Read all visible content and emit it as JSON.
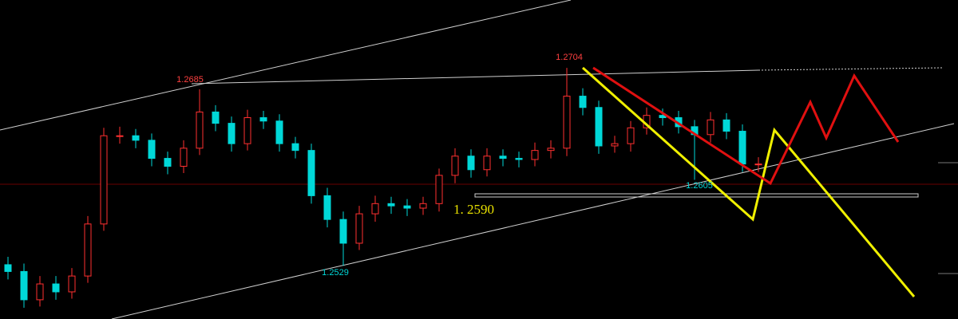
{
  "chart_data": {
    "type": "candlestick",
    "open": [
      1.253,
      1.2524,
      1.2499,
      1.2513,
      1.2506,
      1.252,
      1.2566,
      1.2644,
      1.2644,
      1.264,
      1.2624,
      1.2617,
      1.2633,
      1.2665,
      1.2655,
      1.2637,
      1.266,
      1.2657,
      1.2637,
      1.2631,
      1.2591,
      1.257,
      1.2549,
      1.2575,
      1.2584,
      1.2582,
      1.258,
      1.2584,
      1.2609,
      1.2626,
      1.2614,
      1.2626,
      1.2624,
      1.2623,
      1.2631,
      1.2633,
      1.2679,
      1.2669,
      1.2635,
      1.2637,
      1.2651,
      1.2662,
      1.266,
      1.2652,
      1.2645,
      1.2658,
      1.2648,
      1.2619
    ],
    "high": [
      1.2537,
      1.2531,
      1.252,
      1.252,
      1.2527,
      1.2573,
      1.2651,
      1.2652,
      1.265,
      1.2646,
      1.263,
      1.264,
      1.2685,
      1.2671,
      1.2661,
      1.2667,
      1.2666,
      1.2663,
      1.2643,
      1.2637,
      1.2598,
      1.2577,
      1.2582,
      1.2591,
      1.259,
      1.2588,
      1.259,
      1.2615,
      1.2633,
      1.2632,
      1.2633,
      1.2632,
      1.263,
      1.2638,
      1.264,
      1.2704,
      1.2686,
      1.2675,
      1.2644,
      1.2657,
      1.2669,
      1.2668,
      1.2666,
      1.2658,
      1.2665,
      1.2664,
      1.2654,
      1.2625
    ],
    "low": [
      1.2517,
      1.2492,
      1.2493,
      1.2499,
      1.25,
      1.2514,
      1.256,
      1.2637,
      1.2633,
      1.2617,
      1.261,
      1.2611,
      1.2627,
      1.2648,
      1.263,
      1.2631,
      1.265,
      1.263,
      1.2624,
      1.2584,
      1.2563,
      1.2529,
      1.2543,
      1.2568,
      1.2575,
      1.2573,
      1.2574,
      1.2577,
      1.2602,
      1.2607,
      1.2608,
      1.2617,
      1.2616,
      1.2617,
      1.2624,
      1.2626,
      1.2662,
      1.2628,
      1.2629,
      1.263,
      1.2645,
      1.2653,
      1.2646,
      1.2605,
      1.2638,
      1.2641,
      1.2612,
      1.2612
    ],
    "close": [
      1.2524,
      1.2499,
      1.2513,
      1.2506,
      1.252,
      1.2566,
      1.2644,
      1.2644,
      1.264,
      1.2624,
      1.2617,
      1.2633,
      1.2665,
      1.2655,
      1.2637,
      1.266,
      1.2657,
      1.2637,
      1.2631,
      1.2591,
      1.257,
      1.2549,
      1.2575,
      1.2584,
      1.2582,
      1.258,
      1.2584,
      1.2609,
      1.2626,
      1.2614,
      1.2626,
      1.2624,
      1.2623,
      1.2631,
      1.2633,
      1.2679,
      1.2669,
      1.2635,
      1.2637,
      1.2651,
      1.2662,
      1.266,
      1.2652,
      1.2645,
      1.2658,
      1.2648,
      1.2619,
      1.2619
    ],
    "ylim": [
      1.2482,
      1.2764
    ],
    "up_color": "#ff3030",
    "down_color": "#00d8d8",
    "annotations": [
      "1.2685",
      "1.2704",
      "1.2605",
      "1.2529",
      "1. 2590"
    ]
  }
}
